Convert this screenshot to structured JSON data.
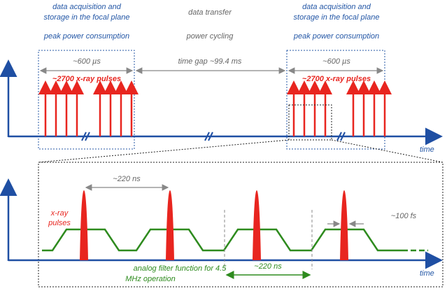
{
  "top": {
    "blocks": [
      {
        "title": [
          "data acquisition and",
          "storage in the focal plane"
        ],
        "subtitle": "peak power consumption",
        "duration": "~600 µs",
        "pulses": "~2700 x-ray pulses"
      },
      {
        "title": [
          "data acquisition and",
          "storage in the focal plane"
        ],
        "subtitle": "peak power consumption",
        "duration": "~600 µs",
        "pulses": "~2700 x-ray pulses"
      }
    ],
    "gap": {
      "title": "data transfer",
      "subtitle": "power cycling",
      "duration": "time gap ~99.4 ms"
    },
    "axis_label": "time"
  },
  "bottom": {
    "pulse_label": [
      "x-ray",
      "pulses"
    ],
    "spacing": "~220 ns",
    "pulse_width": "~100 fs",
    "filter_label": [
      "analog filter function for 4.5",
      "MHz operation"
    ],
    "filter_period": "~220 ns",
    "axis_label": "time"
  }
}
